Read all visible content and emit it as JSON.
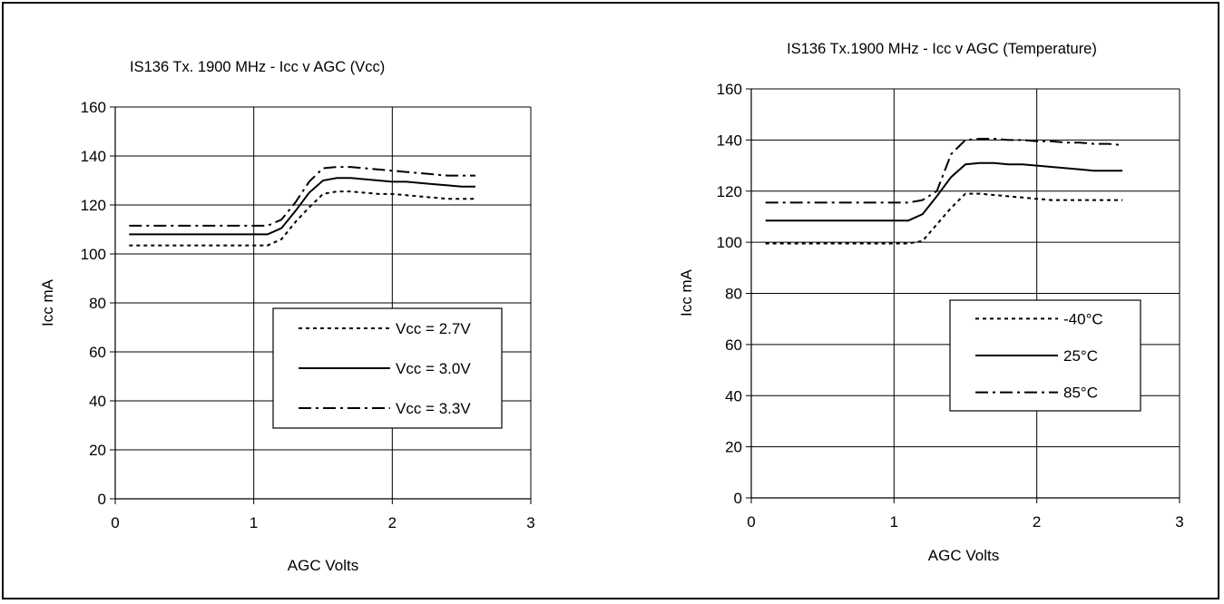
{
  "chart_data": [
    {
      "type": "line",
      "title": "IS136 Tx. 1900 MHz - Icc v AGC (Vcc)",
      "xlabel": "AGC Volts",
      "ylabel": "Icc mA",
      "xlim": [
        0,
        3
      ],
      "ylim": [
        0,
        160
      ],
      "xticks": [
        0,
        1,
        2,
        3
      ],
      "yticks": [
        0,
        20,
        40,
        60,
        80,
        100,
        120,
        140,
        160
      ],
      "grid": true,
      "legend_position": "bottom-right",
      "series": [
        {
          "name": "Vcc = 2.7V",
          "dash": "dotted",
          "x": [
            0.1,
            1.1,
            1.2,
            1.3,
            1.4,
            1.5,
            1.6,
            1.7,
            1.8,
            1.9,
            2.0,
            2.1,
            2.2,
            2.3,
            2.4,
            2.5,
            2.6
          ],
          "y": [
            103.5,
            103.5,
            106,
            113,
            119,
            124.5,
            125.5,
            125.5,
            125,
            124.5,
            124.5,
            124,
            123.5,
            123,
            122.5,
            122.5,
            122.5
          ]
        },
        {
          "name": "Vcc = 3.0V",
          "dash": "solid",
          "x": [
            0.1,
            1.1,
            1.2,
            1.3,
            1.4,
            1.5,
            1.6,
            1.7,
            1.8,
            1.9,
            2.0,
            2.1,
            2.2,
            2.3,
            2.4,
            2.5,
            2.6
          ],
          "y": [
            108,
            108,
            110.5,
            117.5,
            125,
            130,
            131,
            131,
            130.5,
            130,
            129.5,
            129.5,
            129,
            128.5,
            128,
            127.5,
            127.5
          ]
        },
        {
          "name": "Vcc = 3.3V",
          "dash": "dashdot",
          "x": [
            0.1,
            1.1,
            1.2,
            1.3,
            1.4,
            1.5,
            1.6,
            1.7,
            1.8,
            1.9,
            2.0,
            2.1,
            2.2,
            2.3,
            2.4,
            2.5,
            2.6
          ],
          "y": [
            111.5,
            111.5,
            114,
            121,
            129.5,
            135,
            135.5,
            135.5,
            135,
            134.5,
            134,
            133.5,
            133,
            132.5,
            132,
            132,
            132
          ]
        }
      ]
    },
    {
      "type": "line",
      "title": "IS136 Tx.1900 MHz - Icc v AGC (Temperature)",
      "xlabel": "AGC Volts",
      "ylabel": "Icc mA",
      "xlim": [
        0,
        3
      ],
      "ylim": [
        0,
        160
      ],
      "xticks": [
        0,
        1,
        2,
        3
      ],
      "yticks": [
        0,
        20,
        40,
        60,
        80,
        100,
        120,
        140,
        160
      ],
      "grid": true,
      "legend_position": "bottom-right",
      "series": [
        {
          "name": "-40°C",
          "dash": "dotted",
          "x": [
            0.1,
            1.1,
            1.2,
            1.3,
            1.4,
            1.5,
            1.6,
            1.7,
            1.8,
            1.9,
            2.0,
            2.1,
            2.2,
            2.3,
            2.4,
            2.5,
            2.6
          ],
          "y": [
            99.5,
            99.5,
            100.5,
            107,
            113.5,
            119,
            119,
            118.5,
            118,
            117.5,
            117,
            116.5,
            116.5,
            116.5,
            116.5,
            116.5,
            116.5
          ]
        },
        {
          "name": "25°C",
          "dash": "solid",
          "x": [
            0.1,
            1.1,
            1.2,
            1.3,
            1.4,
            1.5,
            1.6,
            1.7,
            1.8,
            1.9,
            2.0,
            2.1,
            2.2,
            2.3,
            2.4,
            2.5,
            2.6
          ],
          "y": [
            108.5,
            108.5,
            111,
            118,
            125.5,
            130.5,
            131,
            131,
            130.5,
            130.5,
            130,
            129.5,
            129,
            128.5,
            128,
            128,
            128
          ]
        },
        {
          "name": "85°C",
          "dash": "dashdot",
          "x": [
            0.1,
            1.1,
            1.2,
            1.3,
            1.4,
            1.5,
            1.6,
            1.7,
            1.8,
            1.9,
            2.0,
            2.1,
            2.2,
            2.3,
            2.4,
            2.5,
            2.6
          ],
          "y": [
            115.5,
            115.5,
            116.5,
            120,
            134.5,
            140,
            140.5,
            140.5,
            140,
            140,
            139.5,
            139.5,
            139,
            139,
            138.5,
            138.5,
            138
          ]
        }
      ]
    }
  ]
}
